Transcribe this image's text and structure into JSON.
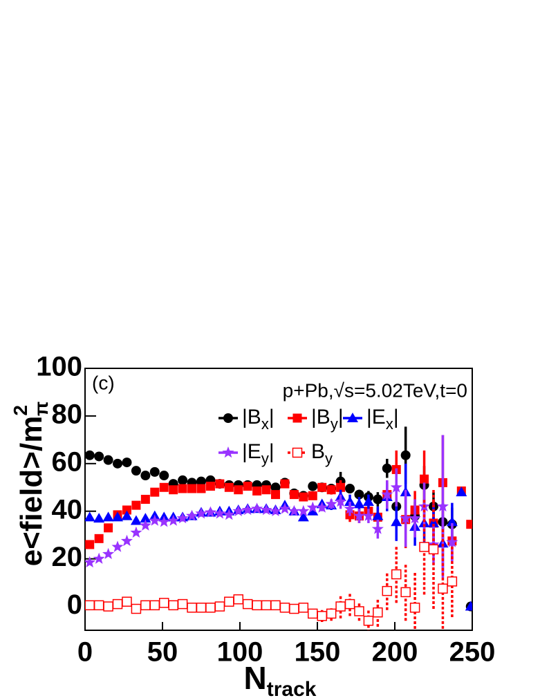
{
  "chart_data": {
    "type": "scatter",
    "annotations": [
      "(c)",
      "p+Pb,√s=5.02TeV,t=0"
    ],
    "xlabel": {
      "text": "N",
      "sub": "track"
    },
    "ylabel": {
      "text": "e<field>/m",
      "sup": "2",
      "sub": "π"
    },
    "x": [
      3,
      9,
      15,
      21,
      27,
      33,
      39,
      45,
      51,
      57,
      63,
      69,
      75,
      81,
      87,
      93,
      99,
      105,
      111,
      117,
      123,
      129,
      135,
      141,
      147,
      153,
      159,
      165,
      171,
      177,
      183,
      189,
      195,
      201,
      207,
      213,
      219,
      225,
      231,
      237,
      243,
      249
    ],
    "xlim": [
      0,
      250
    ],
    "xticks": [
      0,
      50,
      100,
      150,
      200,
      250
    ],
    "ylim": [
      -10,
      100
    ],
    "yticks": [
      0,
      20,
      40,
      60,
      80,
      100
    ],
    "series": [
      {
        "name": [
          "|B",
          "x",
          "|"
        ],
        "color": "#000000",
        "marker": "circle",
        "values": [
          63.5,
          63,
          61.5,
          60,
          60.5,
          57,
          55,
          56.5,
          55,
          51.5,
          53,
          52,
          52.5,
          53,
          51.5,
          51,
          51,
          51,
          51,
          51,
          50,
          52,
          47.5,
          46.5,
          50.5,
          50,
          49.5,
          52.5,
          49.5,
          47,
          46,
          45,
          58,
          42,
          63.5,
          38,
          51,
          42,
          35.5,
          34.5,
          null,
          0
        ],
        "errors": [
          0.5,
          0.5,
          0.5,
          0.5,
          0.5,
          0.5,
          0.5,
          0.5,
          0.5,
          0.5,
          0.5,
          0.5,
          0.5,
          0.5,
          0.5,
          0.5,
          0.5,
          0.5,
          0.5,
          0.5,
          0.5,
          0.5,
          0.8,
          0.8,
          1,
          1.5,
          2,
          4,
          2,
          2,
          2.5,
          3,
          4,
          8,
          12,
          6,
          8,
          6,
          8,
          7,
          null,
          0.5
        ]
      },
      {
        "name": [
          "|B",
          "y",
          "|"
        ],
        "color": "#ff0000",
        "marker": "square",
        "values": [
          26,
          28.5,
          33,
          38.5,
          40.5,
          42.5,
          45,
          48,
          50,
          49,
          49.5,
          49.5,
          49.5,
          50.5,
          51.5,
          50,
          49,
          50.5,
          48.5,
          49,
          47,
          51.5,
          47,
          46,
          46.5,
          50,
          49,
          50,
          38.5,
          38,
          40,
          37.5,
          47,
          57.5,
          36.5,
          40.5,
          53.5,
          35,
          52,
          27.5,
          48.5,
          34.5
        ],
        "errors": [
          0.5,
          0.5,
          0.5,
          0.5,
          0.5,
          0.5,
          0.5,
          0.5,
          0.5,
          0.5,
          0.5,
          0.5,
          0.5,
          0.5,
          0.5,
          0.5,
          0.5,
          0.5,
          0.5,
          0.5,
          0.5,
          0.5,
          0.8,
          0.8,
          1,
          1.5,
          2,
          3,
          3,
          3,
          3,
          4,
          6,
          8,
          12,
          8,
          12,
          10,
          20,
          8,
          1,
          0.5
        ]
      },
      {
        "name": [
          "|E",
          "x",
          "|"
        ],
        "color": "#0000ff",
        "marker": "triangle",
        "values": [
          37.5,
          37,
          37.5,
          37.5,
          38,
          36,
          37,
          38,
          37.5,
          37.5,
          37.5,
          38,
          39.5,
          39.5,
          40,
          40,
          40.5,
          41,
          41,
          41,
          40.5,
          42.5,
          40,
          37.5,
          40,
          43,
          42.5,
          46,
          44,
          43,
          44,
          38,
          46,
          35.5,
          48,
          33.5,
          35,
          35,
          26.5,
          35.5,
          48,
          0
        ],
        "errors": [
          0.5,
          0.5,
          0.5,
          0.5,
          0.5,
          0.5,
          0.5,
          0.5,
          0.5,
          0.5,
          0.5,
          0.5,
          0.5,
          0.5,
          0.5,
          0.5,
          0.5,
          0.5,
          0.5,
          0.5,
          0.5,
          0.5,
          0.8,
          0.8,
          1,
          1.5,
          2,
          3,
          3,
          3,
          3,
          4,
          6,
          8,
          12,
          8,
          10,
          8,
          12,
          8,
          1,
          0.5
        ]
      },
      {
        "name": [
          "|E",
          "y",
          "|"
        ],
        "color": "#9933ff",
        "marker": "star",
        "values": [
          18.5,
          20,
          22,
          25,
          27.5,
          31,
          34,
          36,
          35.5,
          36,
          37,
          38,
          39,
          39.5,
          39,
          38.5,
          40,
          40.5,
          41,
          40.5,
          40,
          41,
          40,
          40,
          41.5,
          41.5,
          43,
          44,
          41,
          38,
          38,
          32.5,
          47,
          50,
          37,
          37,
          42,
          26,
          42,
          27,
          null,
          null
        ],
        "errors": [
          0.5,
          0.5,
          0.5,
          0.5,
          0.5,
          0.5,
          0.5,
          0.5,
          0.5,
          0.5,
          0.5,
          0.5,
          0.5,
          0.5,
          0.5,
          0.5,
          0.5,
          0.5,
          0.5,
          0.5,
          0.5,
          0.5,
          0.8,
          0.8,
          1,
          1.5,
          2,
          3,
          3,
          3,
          3,
          4,
          6,
          8,
          12,
          8,
          10,
          8,
          30,
          8,
          null,
          null
        ]
      },
      {
        "name": [
          "B",
          "y",
          ""
        ],
        "color": "#ff0000",
        "marker": "open-square",
        "dashed": true,
        "values": [
          0.5,
          0.5,
          0,
          1,
          2,
          -1,
          0.5,
          0.5,
          1.5,
          0.5,
          1,
          -0.5,
          -0.5,
          -0.5,
          0,
          2,
          3,
          1,
          0.5,
          0.5,
          0.5,
          -0.5,
          -1,
          -0.5,
          -3,
          -4,
          -3,
          0,
          1,
          -2,
          -6,
          -2.5,
          6.5,
          13.5,
          6,
          -0.5,
          25,
          24,
          7.5,
          10.5,
          null,
          null
        ],
        "errors": [
          1,
          1,
          1,
          1,
          1,
          1,
          1,
          1,
          1,
          1,
          1,
          1,
          1,
          1,
          1,
          1,
          1,
          1,
          1,
          1,
          1,
          1,
          1.5,
          1.5,
          2,
          2.5,
          3,
          5,
          5,
          4,
          5,
          6,
          8,
          12,
          12,
          15,
          20,
          25,
          25,
          15,
          null,
          null
        ]
      }
    ]
  }
}
